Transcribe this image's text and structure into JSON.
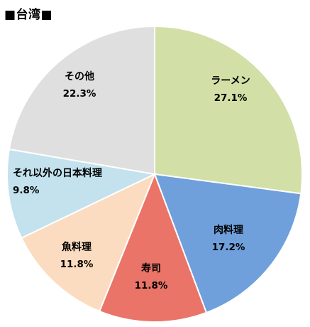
{
  "chart_data": {
    "type": "pie",
    "title": "■台湾■",
    "categories": [
      "ラーメン",
      "肉料理",
      "寿司",
      "魚料理",
      "それ以外の日本料理",
      "その他"
    ],
    "values": [
      27.1,
      17.2,
      11.8,
      11.8,
      9.8,
      22.3
    ],
    "value_labels": [
      "27.1%",
      "17.2%",
      "11.8%",
      "11.8%",
      "9.8%",
      "22.3%"
    ],
    "colors": [
      "#d2dfa6",
      "#6fa0dc",
      "#ea7468",
      "#fbdcc0",
      "#c3e2ee",
      "#dfdfdf"
    ],
    "start": "12 o'clock",
    "direction": "clockwise",
    "legend": "none"
  }
}
